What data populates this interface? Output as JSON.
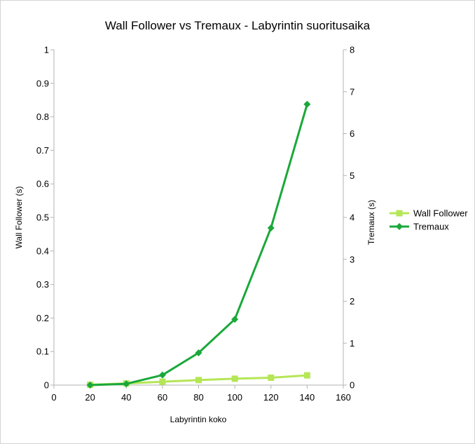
{
  "chart_data": {
    "type": "line",
    "title": "Wall Follower vs Tremaux - Labyrintin suoritusaika",
    "xlabel": "Labyrintin koko",
    "ylabel": "Wall Follower (s)",
    "y2label": "Tremaux (s)",
    "xlim": [
      0,
      160
    ],
    "xticks": [
      "0",
      "20",
      "40",
      "60",
      "80",
      "100",
      "120",
      "140",
      "160"
    ],
    "ylim": [
      0,
      1
    ],
    "yticks": [
      "0",
      "0.1",
      "0.2",
      "0.3",
      "0.4",
      "0.5",
      "0.6",
      "0.7",
      "0.8",
      "0.9",
      "1"
    ],
    "y2lim": [
      0,
      8
    ],
    "y2ticks": [
      "0",
      "1",
      "2",
      "3",
      "4",
      "5",
      "6",
      "7",
      "8"
    ],
    "grid": false,
    "legend": "right",
    "x": [
      20,
      40,
      60,
      80,
      100,
      120,
      140
    ],
    "series": [
      {
        "name": "Wall Follower",
        "axis": "left",
        "marker": "square",
        "color": "#b5e655",
        "values": [
          0.001,
          0.005,
          0.01,
          0.015,
          0.019,
          0.022,
          0.029
        ]
      },
      {
        "name": "Tremaux",
        "axis": "right",
        "marker": "diamond",
        "color": "#1aa83a",
        "values": [
          0.0,
          0.03,
          0.24,
          0.77,
          1.57,
          3.75,
          6.7
        ]
      }
    ]
  }
}
